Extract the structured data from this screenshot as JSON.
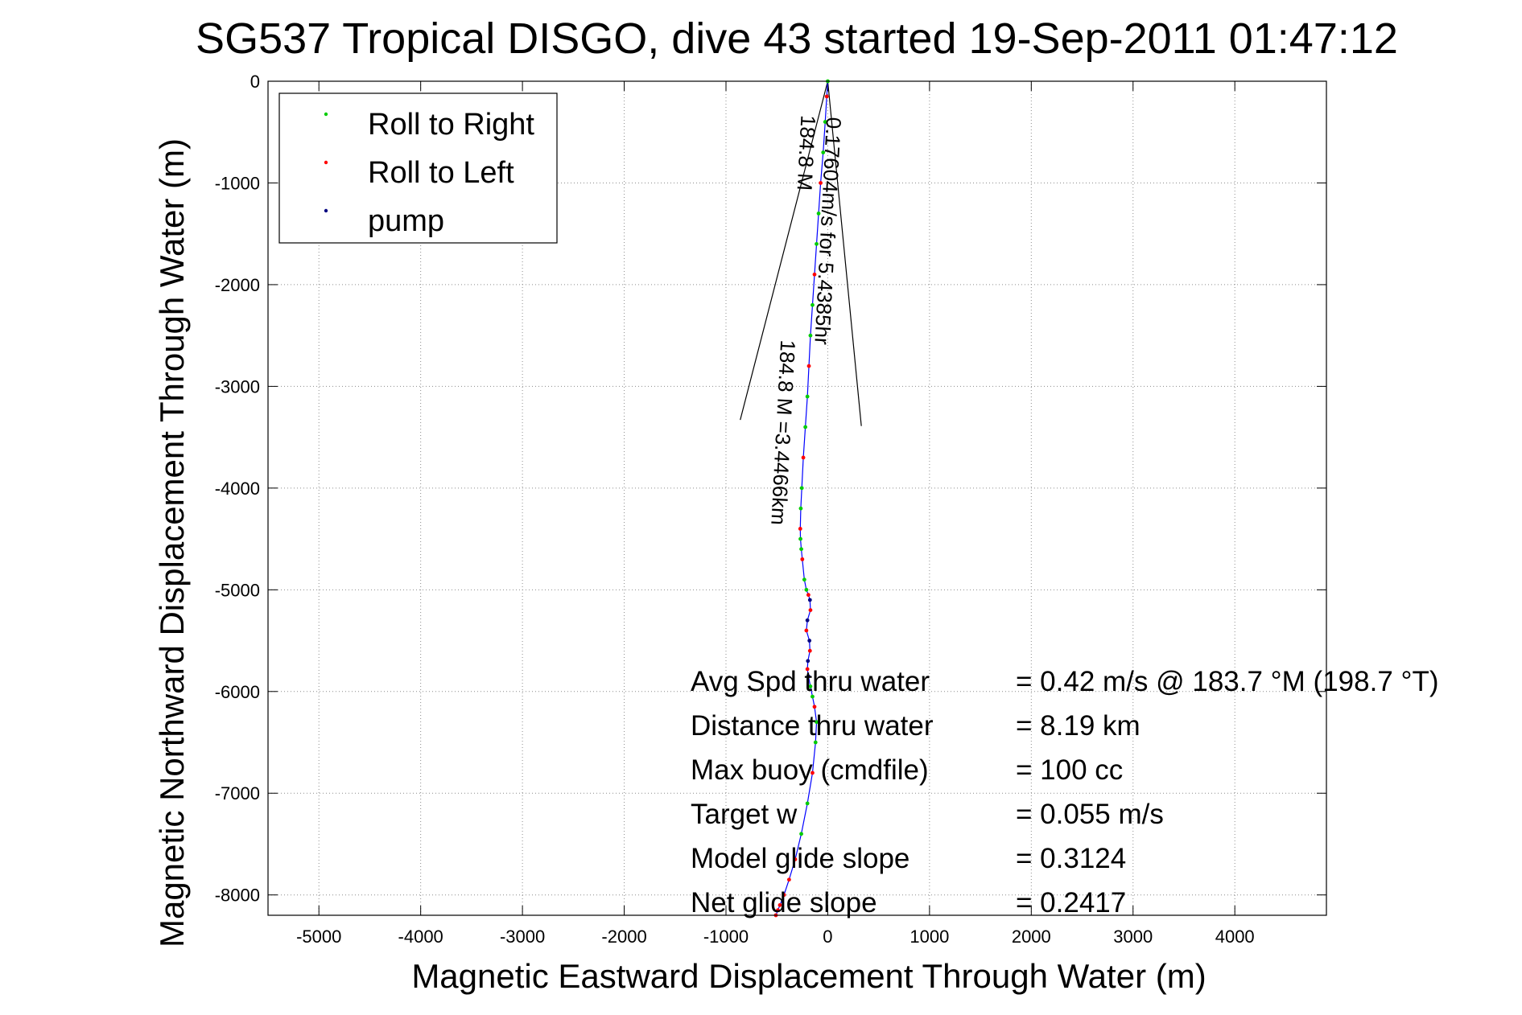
{
  "chart_data": {
    "type": "line",
    "title": "SG537 Tropical DISGO, dive 43 started 19-Sep-2011 01:47:12",
    "xlabel": "Magnetic Eastward Displacement Through Water (m)",
    "ylabel": "Magnetic Northward Displacement Through Water (m)",
    "xlim": [
      -5500,
      4900
    ],
    "ylim": [
      -8200,
      0
    ],
    "xticks": [
      -5000,
      -4000,
      -3000,
      -2000,
      -1000,
      0,
      1000,
      2000,
      3000,
      4000
    ],
    "yticks": [
      0,
      -1000,
      -2000,
      -3000,
      -4000,
      -5000,
      -6000,
      -7000,
      -8000
    ],
    "grid": true,
    "legend_position": "top-left",
    "legend": [
      {
        "label": "Roll to Right",
        "color": "#00cc00"
      },
      {
        "label": "Roll to Left",
        "color": "#ff0000"
      },
      {
        "label": "pump",
        "color": "#000080"
      }
    ],
    "series": [
      {
        "name": "track",
        "color": "#0000ff",
        "x": [
          0,
          -10,
          -25,
          -45,
          -70,
          -90,
          -110,
          -130,
          -150,
          -170,
          -185,
          -200,
          -220,
          -240,
          -255,
          -265,
          -270,
          -268,
          -260,
          -250,
          -230,
          -210,
          -190,
          -175,
          -170,
          -200,
          -210,
          -180,
          -175,
          -195,
          -200,
          -190,
          -170,
          -150,
          -130,
          -110,
          -120,
          -150,
          -200,
          -260,
          -320,
          -380,
          -430,
          -470,
          -490,
          -510
        ],
        "y": [
          0,
          -150,
          -400,
          -700,
          -1000,
          -1300,
          -1600,
          -1900,
          -2200,
          -2500,
          -2800,
          -3100,
          -3400,
          -3700,
          -4000,
          -4200,
          -4400,
          -4500,
          -4600,
          -4700,
          -4900,
          -5000,
          -5050,
          -5100,
          -5200,
          -5300,
          -5400,
          -5500,
          -5600,
          -5700,
          -5780,
          -5850,
          -5950,
          -6050,
          -6150,
          -6300,
          -6500,
          -6800,
          -7100,
          -7400,
          -7650,
          -7850,
          -8000,
          -8100,
          -8150,
          -8200
        ]
      }
    ],
    "current_vectors": [
      {
        "x": [
          0,
          -860
        ],
        "y": [
          0,
          -3330
        ]
      },
      {
        "x": [
          0,
          330
        ],
        "y": [
          0,
          -3390
        ]
      }
    ],
    "annotations": [
      {
        "text": "0.17604m/s for 5.4385hr",
        "x": -10,
        "y": -350,
        "rotation": 93
      },
      {
        "text": "184.8 M",
        "x": -260,
        "y": -330,
        "rotation": 93
      },
      {
        "text": "184.8 M =3.4466km",
        "x": -460,
        "y": -2540,
        "rotation": 93
      }
    ],
    "stats": [
      {
        "label": "Avg Spd thru water",
        "value": "=  0.42 m/s @ 183.7  °M (198.7 °T)"
      },
      {
        "label": "Distance thru water",
        "value": "=  8.19 km"
      },
      {
        "label": "Max buoy (cmdfile)",
        "value": "= 100 cc"
      },
      {
        "label": "Target w",
        "value": "= 0.055 m/s"
      },
      {
        "label": "Model glide slope",
        "value": "= 0.3124"
      },
      {
        "label": "Net glide slope",
        "value": "= 0.2417"
      }
    ]
  }
}
